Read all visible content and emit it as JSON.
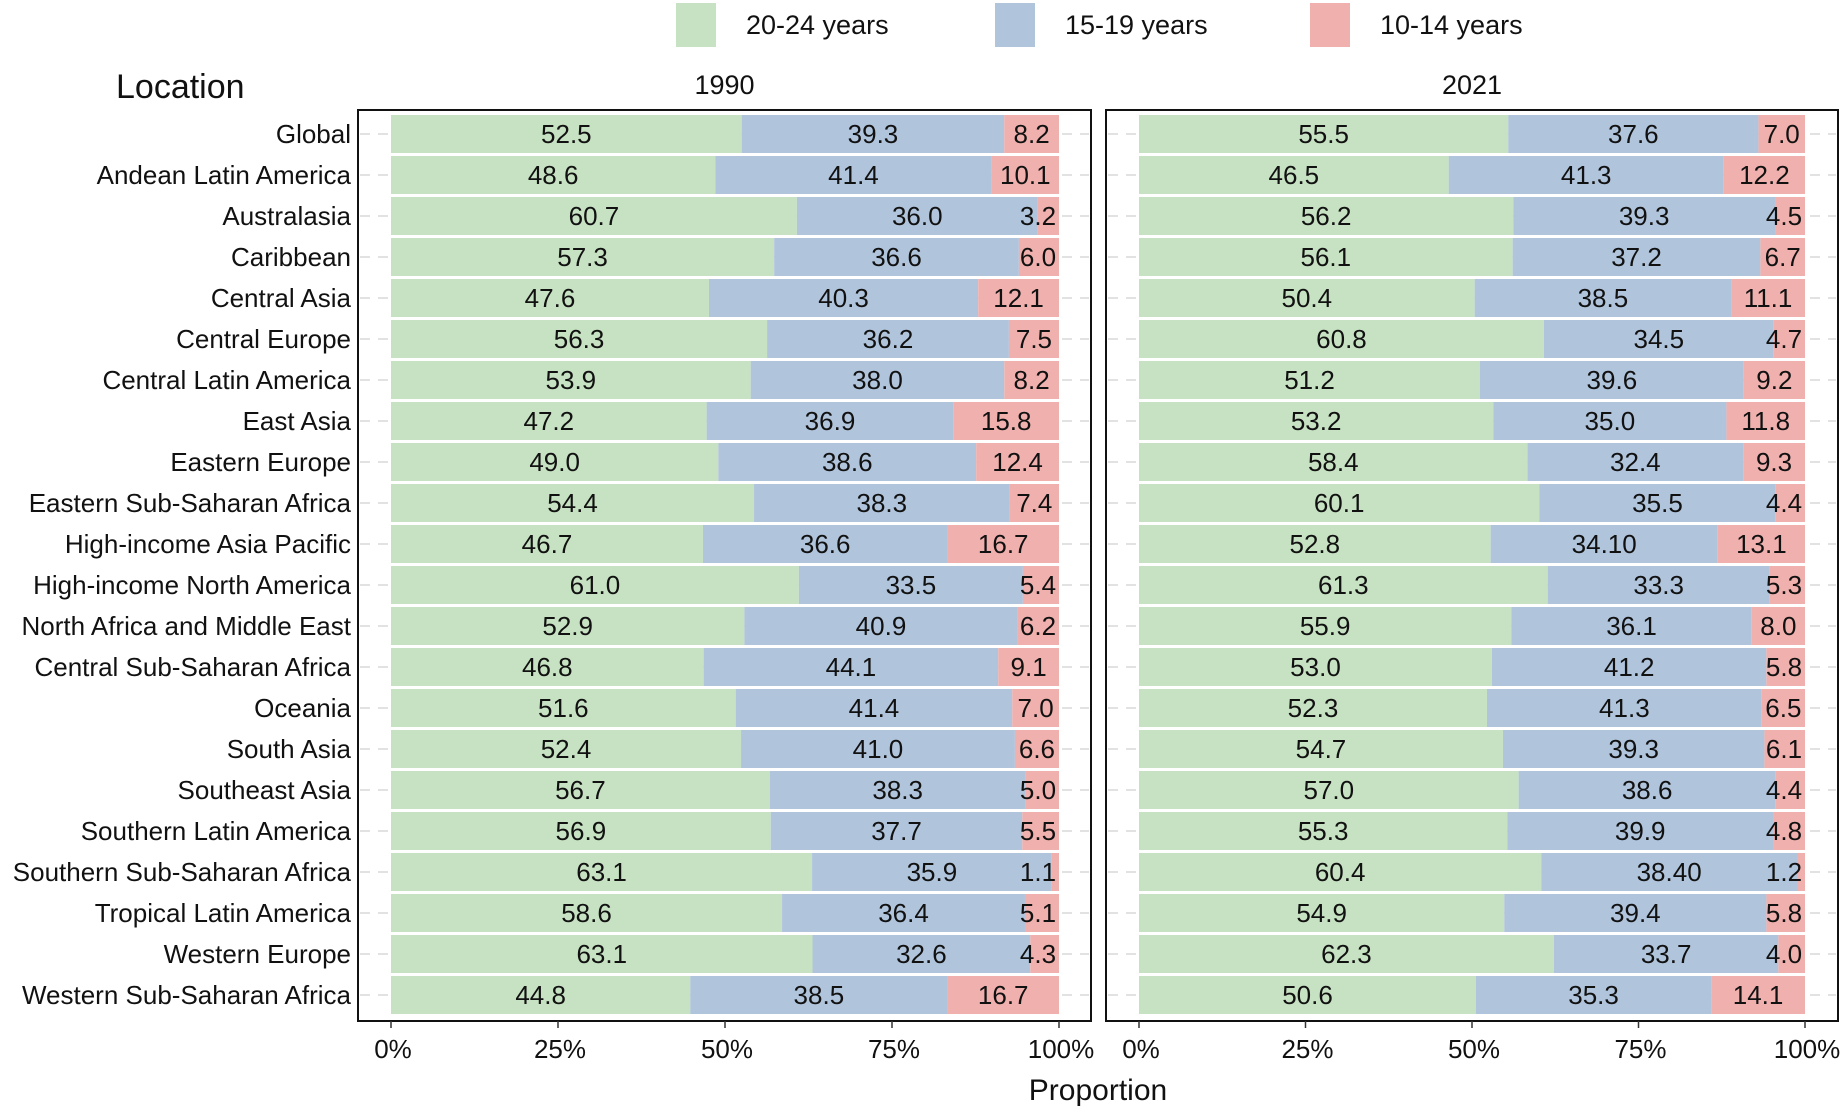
{
  "chart_data": {
    "type": "bar",
    "orientation": "horizontal",
    "stacked": true,
    "percent_stacked": true,
    "xlabel": "Proportion",
    "ylabel": "Location",
    "xlim": [
      0,
      100
    ],
    "x_ticks": [
      "0%",
      "25%",
      "50%",
      "75%",
      "100%"
    ],
    "legend": {
      "position": "top",
      "items": [
        {
          "name": "20-24 years",
          "color": "#c7e2c2"
        },
        {
          "name": "15-19 years",
          "color": "#b0c4dc"
        },
        {
          "name": "10-14 years",
          "color": "#f0b1ae"
        }
      ]
    },
    "categories": [
      "Global",
      "Andean Latin America",
      "Australasia",
      "Caribbean",
      "Central Asia",
      "Central Europe",
      "Central Latin America",
      "East Asia",
      "Eastern Europe",
      "Eastern Sub-Saharan Africa",
      "High-income Asia Pacific",
      "High-income North America",
      "North Africa and Middle East",
      "Central Sub-Saharan Africa",
      "Oceania",
      "South Asia",
      "Southeast Asia",
      "Southern Latin America",
      "Southern Sub-Saharan Africa",
      "Tropical Latin America",
      "Western Europe",
      "Western Sub-Saharan Africa"
    ],
    "panels": [
      {
        "title": "1990",
        "series": [
          {
            "name": "20-24 years",
            "labels": [
              "52.5",
              "48.6",
              "60.7",
              "57.3",
              "47.6",
              "56.3",
              "53.9",
              "47.2",
              "49.0",
              "54.4",
              "46.7",
              "61.0",
              "52.9",
              "46.8",
              "51.6",
              "52.4",
              "56.7",
              "56.9",
              "63.1",
              "58.6",
              "63.1",
              "44.8"
            ]
          },
          {
            "name": "15-19 years",
            "labels": [
              "39.3",
              "41.4",
              "36.0",
              "36.6",
              "40.3",
              "36.2",
              "38.0",
              "36.9",
              "38.6",
              "38.3",
              "36.6",
              "33.5",
              "40.9",
              "44.1",
              "41.4",
              "41.0",
              "38.3",
              "37.7",
              "35.9",
              "36.4",
              "32.6",
              "38.5"
            ]
          },
          {
            "name": "10-14 years",
            "labels": [
              "8.2",
              "10.1",
              "3.2",
              "6.0",
              "12.1",
              "7.5",
              "8.2",
              "15.8",
              "12.4",
              "7.4",
              "16.7",
              "5.4",
              "6.2",
              "9.1",
              "7.0",
              "6.6",
              "5.0",
              "5.5",
              "1.1",
              "5.1",
              "4.3",
              "16.7"
            ]
          }
        ]
      },
      {
        "title": "2021",
        "series": [
          {
            "name": "20-24 years",
            "labels": [
              "55.5",
              "46.5",
              "56.2",
              "56.1",
              "50.4",
              "60.8",
              "51.2",
              "53.2",
              "58.4",
              "60.1",
              "52.8",
              "61.3",
              "55.9",
              "53.0",
              "52.3",
              "54.7",
              "57.0",
              "55.3",
              "60.4",
              "54.9",
              "62.3",
              "50.6"
            ]
          },
          {
            "name": "15-19 years",
            "labels": [
              "37.6",
              "41.3",
              "39.3",
              "37.2",
              "38.5",
              "34.5",
              "39.6",
              "35.0",
              "32.4",
              "35.5",
              "34.10",
              "33.3",
              "36.1",
              "41.2",
              "41.3",
              "39.3",
              "38.6",
              "39.9",
              "38.40",
              "39.4",
              "33.7",
              "35.3"
            ]
          },
          {
            "name": "10-14 years",
            "labels": [
              "7.0",
              "12.2",
              "4.5",
              "6.7",
              "11.1",
              "4.7",
              "9.2",
              "11.8",
              "9.3",
              "4.4",
              "13.1",
              "5.3",
              "8.0",
              "5.8",
              "6.5",
              "6.1",
              "4.4",
              "4.8",
              "1.2",
              "5.8",
              "4.0",
              "14.1"
            ]
          }
        ]
      }
    ]
  }
}
